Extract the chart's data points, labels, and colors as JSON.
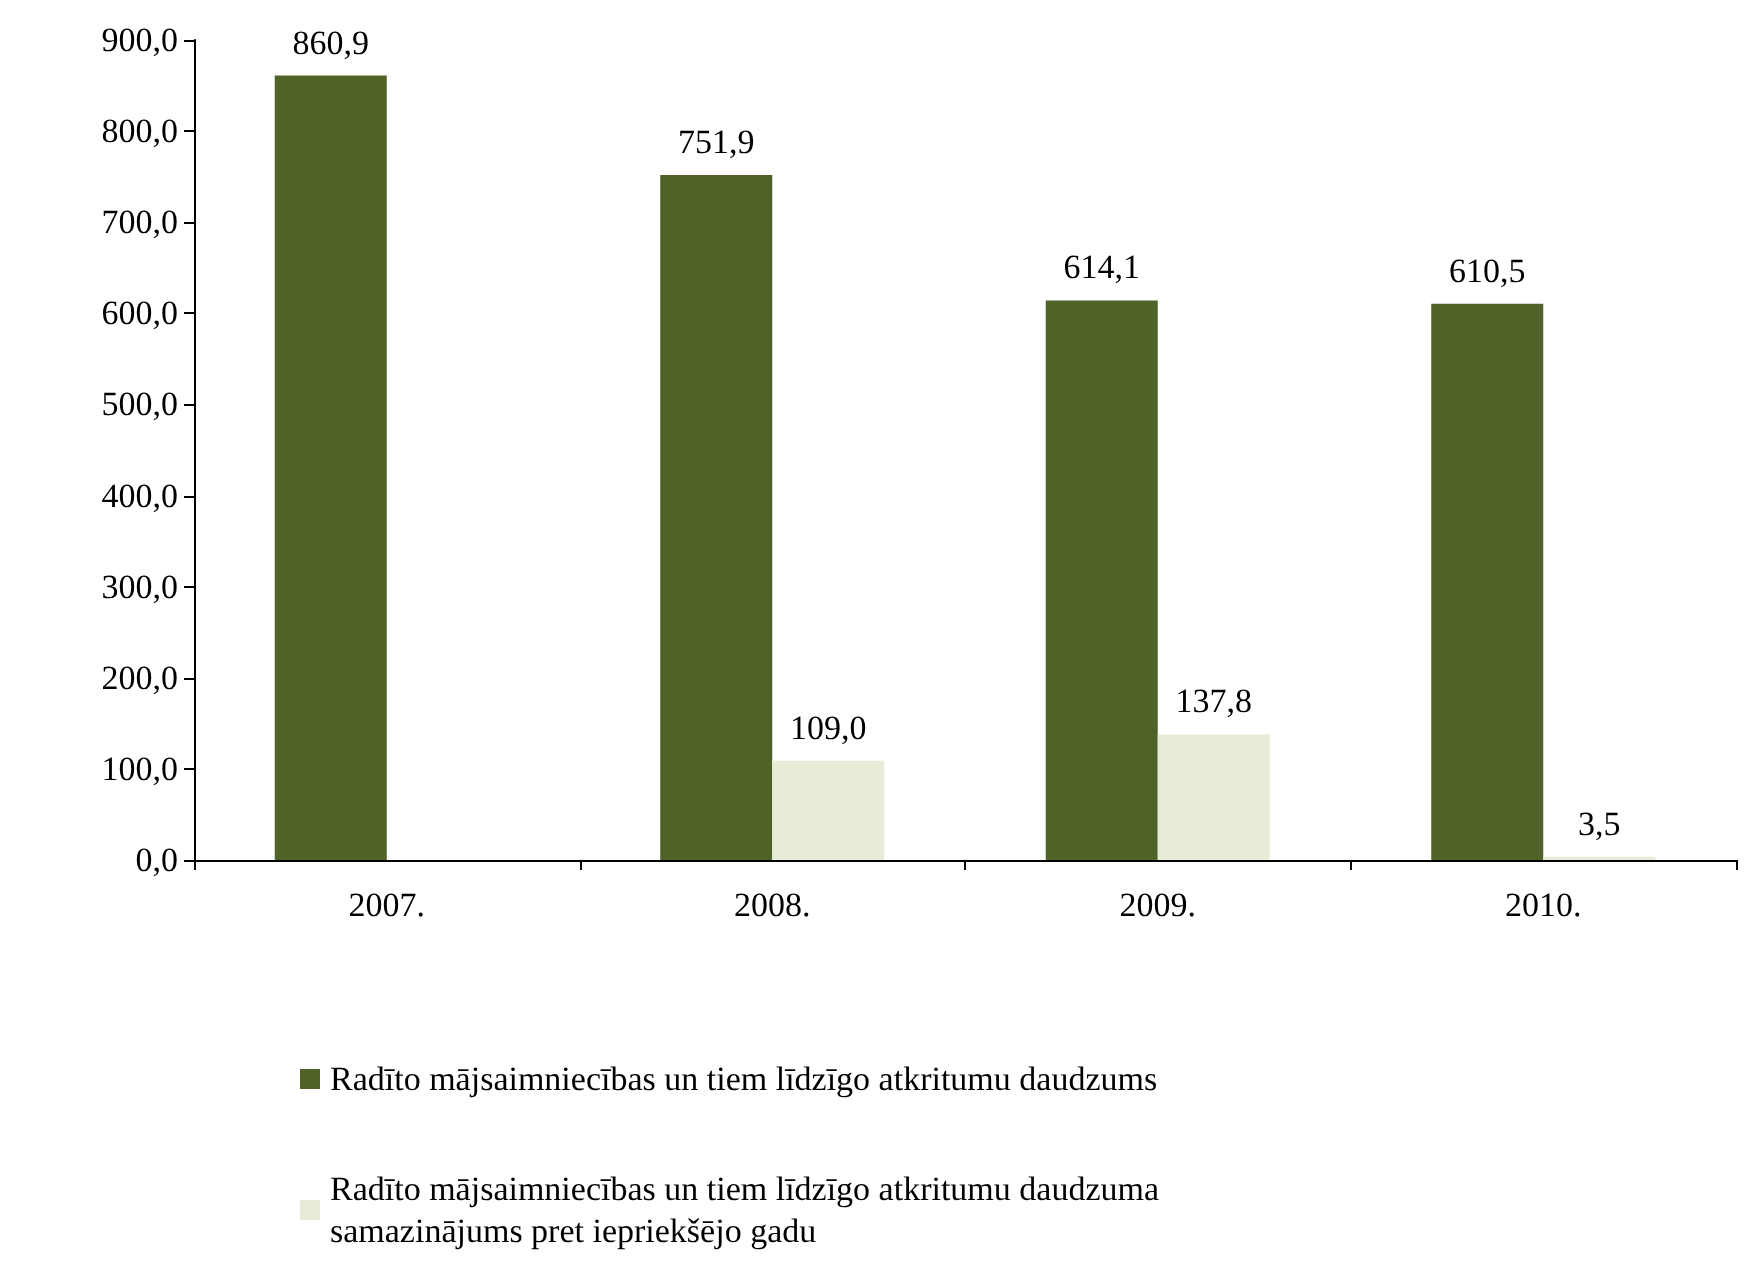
{
  "chart_data": {
    "type": "bar",
    "categories": [
      "2007.",
      "2008.",
      "2009.",
      "2010."
    ],
    "series": [
      {
        "name": "Radīto mājsaimniecības un tiem līdzīgo atkritumu daudzums",
        "color": "#4f6228",
        "values": [
          860.9,
          751.9,
          614.1,
          610.5
        ],
        "value_labels": [
          "860,9",
          "751,9",
          "614,1",
          "610,5"
        ]
      },
      {
        "name": "Radīto mājsaimniecības un tiem līdzīgo atkritumu daudzuma samazinājums pret iepriekšējo gadu",
        "color": "#e6ecd6",
        "values": [
          null,
          109.0,
          137.8,
          3.5
        ],
        "value_labels": [
          null,
          "109,0",
          "137,8",
          "3,5"
        ]
      }
    ],
    "ylim": [
      0,
      900
    ],
    "yticks": [
      {
        "value": 0,
        "label": "0,0"
      },
      {
        "value": 100,
        "label": "100,0"
      },
      {
        "value": 200,
        "label": "200,0"
      },
      {
        "value": 300,
        "label": "300,0"
      },
      {
        "value": 400,
        "label": "400,0"
      },
      {
        "value": 500,
        "label": "500,0"
      },
      {
        "value": 600,
        "label": "600,0"
      },
      {
        "value": 700,
        "label": "700,0"
      },
      {
        "value": 800,
        "label": "800,0"
      },
      {
        "value": 900,
        "label": "900,0"
      }
    ],
    "grid": false,
    "legend": "bottom"
  }
}
